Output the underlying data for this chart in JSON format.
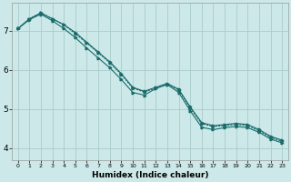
{
  "xlabel": "Humidex (Indice chaleur)",
  "background_color": "#cce8e8",
  "grid_color": "#aacccc",
  "line_color": "#1a6b6b",
  "xlim": [
    -0.5,
    23.5
  ],
  "ylim": [
    3.7,
    7.7
  ],
  "yticks": [
    4,
    5,
    6,
    7
  ],
  "xticks": [
    0,
    1,
    2,
    3,
    4,
    5,
    6,
    7,
    8,
    9,
    10,
    11,
    12,
    13,
    14,
    15,
    16,
    17,
    18,
    19,
    20,
    21,
    22,
    23
  ],
  "line1_x": [
    0,
    1,
    2,
    3,
    4,
    5,
    6,
    7,
    8,
    9,
    10,
    11,
    12,
    13,
    14,
    15,
    16,
    17,
    18,
    19,
    20,
    21,
    22,
    23
  ],
  "line1_y": [
    7.05,
    7.3,
    7.45,
    7.3,
    7.15,
    6.95,
    6.7,
    6.45,
    6.2,
    5.9,
    5.55,
    5.45,
    5.55,
    5.65,
    5.5,
    5.05,
    4.65,
    4.57,
    4.6,
    4.63,
    4.6,
    4.47,
    4.3,
    4.2
  ],
  "line2_x": [
    0,
    1,
    2,
    3,
    4,
    5,
    6,
    7,
    8,
    9,
    10,
    11,
    12,
    13,
    14,
    15,
    16,
    17,
    18,
    19,
    20,
    21,
    22,
    23
  ],
  "line2_y": [
    7.05,
    7.3,
    7.45,
    7.3,
    7.15,
    6.92,
    6.68,
    6.43,
    6.18,
    5.88,
    5.53,
    5.43,
    5.53,
    5.63,
    5.48,
    5.02,
    4.62,
    4.55,
    4.57,
    4.6,
    4.57,
    4.44,
    4.27,
    4.17
  ],
  "line3_x": [
    0,
    1,
    2,
    3,
    4,
    5,
    6,
    7,
    8,
    9,
    10,
    11,
    12,
    13,
    14,
    15,
    16,
    17,
    18,
    19,
    20,
    21,
    22,
    23
  ],
  "line3_y": [
    7.05,
    7.28,
    7.42,
    7.25,
    7.05,
    6.82,
    6.55,
    6.3,
    6.05,
    5.75,
    5.42,
    5.35,
    5.52,
    5.62,
    5.42,
    4.95,
    4.53,
    4.47,
    4.52,
    4.55,
    4.52,
    4.4,
    4.23,
    4.13
  ]
}
